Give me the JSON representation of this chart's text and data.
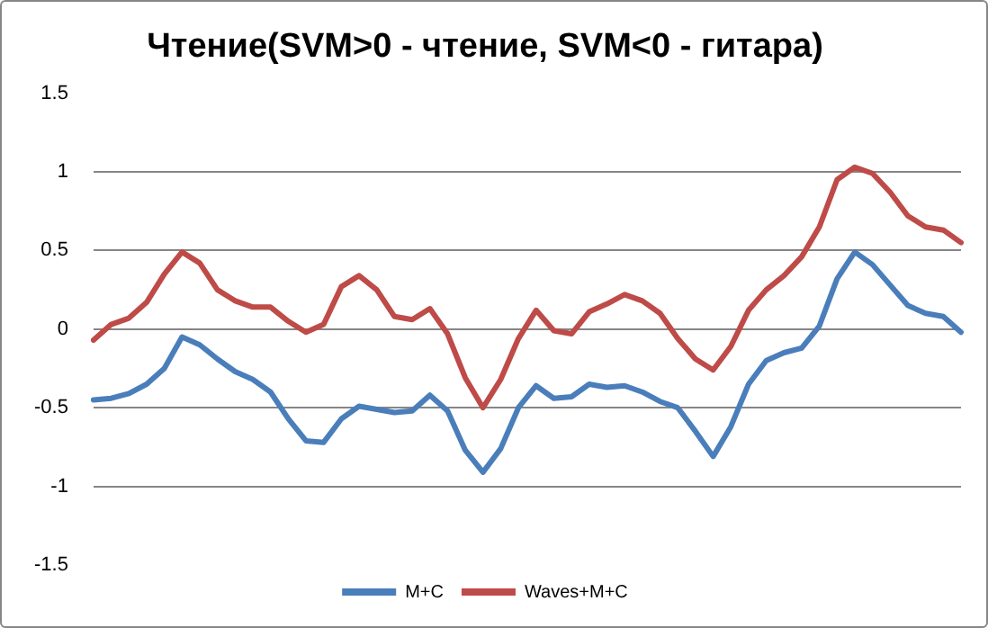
{
  "chart_data": {
    "type": "line",
    "title": "Чтение(SVM>0 - чтение, SVM<0 - гитара)",
    "categories": [
      null,
      null,
      null,
      null,
      null,
      null,
      null,
      null,
      null,
      null,
      null,
      null,
      null,
      null,
      null,
      null,
      null,
      null,
      null,
      null,
      null,
      null,
      null,
      null,
      null,
      null,
      null,
      null,
      null,
      null,
      null,
      null,
      null,
      null,
      null,
      null,
      null,
      null,
      null,
      null,
      null,
      null,
      null,
      null,
      null,
      null,
      null,
      null,
      null,
      null
    ],
    "series": [
      {
        "name": "M+C",
        "color": "#4a7ebb",
        "values": [
          -0.45,
          -0.44,
          -0.41,
          -0.35,
          -0.25,
          -0.05,
          -0.1,
          -0.19,
          -0.27,
          -0.32,
          -0.4,
          -0.57,
          -0.71,
          -0.72,
          -0.57,
          -0.49,
          -0.51,
          -0.53,
          -0.52,
          -0.42,
          -0.52,
          -0.77,
          -0.91,
          -0.76,
          -0.5,
          -0.36,
          -0.44,
          -0.43,
          -0.35,
          -0.37,
          -0.36,
          -0.4,
          -0.46,
          -0.5,
          -0.65,
          -0.81,
          -0.62,
          -0.35,
          -0.2,
          -0.15,
          -0.12,
          0.02,
          0.32,
          0.49,
          0.41,
          0.28,
          0.15,
          0.1,
          0.08,
          -0.02
        ]
      },
      {
        "name": "Waves+M+C",
        "color": "#be4b48",
        "values": [
          -0.07,
          0.03,
          0.07,
          0.17,
          0.35,
          0.49,
          0.42,
          0.25,
          0.18,
          0.14,
          0.14,
          0.05,
          -0.02,
          0.03,
          0.27,
          0.34,
          0.25,
          0.08,
          0.06,
          0.13,
          -0.03,
          -0.31,
          -0.5,
          -0.32,
          -0.06,
          0.12,
          -0.01,
          -0.03,
          0.11,
          0.16,
          0.22,
          0.18,
          0.1,
          -0.06,
          -0.19,
          -0.26,
          -0.11,
          0.12,
          0.25,
          0.34,
          0.46,
          0.65,
          0.95,
          1.03,
          0.99,
          0.87,
          0.72,
          0.65,
          0.63,
          0.55
        ]
      }
    ],
    "ylim": [
      -1.5,
      1.5
    ],
    "yticks": [
      -1.5,
      -1,
      -0.5,
      0,
      0.5,
      1,
      1.5
    ],
    "grid": "y",
    "legend": "bottom",
    "marker": "none",
    "line_style": "solid",
    "tick_labels": "y"
  }
}
